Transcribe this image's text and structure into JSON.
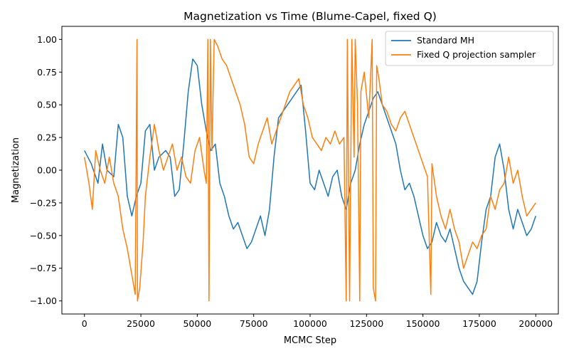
{
  "chart_data": {
    "type": "line",
    "title": "Magnetization vs Time (Blume-Capel, fixed Q)",
    "xlabel": "MCMC Step",
    "ylabel": "Magnetization",
    "xlim": [
      -10000,
      210000
    ],
    "ylim": [
      -1.1,
      1.1
    ],
    "xticks": [
      0,
      25000,
      50000,
      75000,
      100000,
      125000,
      150000,
      175000,
      200000
    ],
    "xtick_labels": [
      "0",
      "25000",
      "50000",
      "75000",
      "100000",
      "125000",
      "150000",
      "175000",
      "200000"
    ],
    "yticks": [
      -1.0,
      -0.75,
      -0.5,
      -0.25,
      0.0,
      0.25,
      0.5,
      0.75,
      1.0
    ],
    "ytick_labels": [
      "−1.00",
      "−0.75",
      "−0.50",
      "−0.25",
      "0.00",
      "0.25",
      "0.50",
      "0.75",
      "1.00"
    ],
    "grid": false,
    "legend_position": "top-right",
    "series": [
      {
        "name": "Standard MH",
        "color": "#1f77b4",
        "points": [
          [
            0,
            0.15
          ],
          [
            3000,
            0.05
          ],
          [
            6000,
            -0.1
          ],
          [
            8000,
            0.2
          ],
          [
            10000,
            0.0
          ],
          [
            13000,
            -0.05
          ],
          [
            15000,
            0.35
          ],
          [
            17000,
            0.25
          ],
          [
            19000,
            -0.2
          ],
          [
            21000,
            -0.35
          ],
          [
            23000,
            -0.2
          ],
          [
            25000,
            -0.1
          ],
          [
            27000,
            0.3
          ],
          [
            29000,
            0.35
          ],
          [
            31000,
            0.0
          ],
          [
            33000,
            0.1
          ],
          [
            36000,
            0.15
          ],
          [
            38000,
            0.1
          ],
          [
            40000,
            -0.2
          ],
          [
            42000,
            -0.15
          ],
          [
            44000,
            0.2
          ],
          [
            46000,
            0.6
          ],
          [
            48000,
            0.85
          ],
          [
            50000,
            0.8
          ],
          [
            52000,
            0.5
          ],
          [
            54000,
            0.3
          ],
          [
            56000,
            0.15
          ],
          [
            58000,
            0.2
          ],
          [
            60000,
            -0.1
          ],
          [
            62000,
            -0.2
          ],
          [
            64000,
            -0.35
          ],
          [
            66000,
            -0.45
          ],
          [
            68000,
            -0.4
          ],
          [
            70000,
            -0.5
          ],
          [
            72000,
            -0.6
          ],
          [
            74000,
            -0.55
          ],
          [
            76000,
            -0.45
          ],
          [
            78000,
            -0.35
          ],
          [
            80000,
            -0.5
          ],
          [
            82000,
            -0.3
          ],
          [
            84000,
            0.1
          ],
          [
            86000,
            0.4
          ],
          [
            88000,
            0.45
          ],
          [
            90000,
            0.5
          ],
          [
            92000,
            0.55
          ],
          [
            94000,
            0.6
          ],
          [
            96000,
            0.65
          ],
          [
            98000,
            0.3
          ],
          [
            100000,
            -0.1
          ],
          [
            102000,
            -0.15
          ],
          [
            104000,
            0.0
          ],
          [
            106000,
            -0.1
          ],
          [
            108000,
            -0.2
          ],
          [
            110000,
            -0.05
          ],
          [
            112000,
            0.0
          ],
          [
            114000,
            -0.2
          ],
          [
            116000,
            -0.3
          ],
          [
            118000,
            -0.1
          ],
          [
            120000,
            0.0
          ],
          [
            122000,
            0.2
          ],
          [
            124000,
            0.35
          ],
          [
            126000,
            0.45
          ],
          [
            128000,
            0.55
          ],
          [
            130000,
            0.6
          ],
          [
            132000,
            0.5
          ],
          [
            134000,
            0.4
          ],
          [
            136000,
            0.3
          ],
          [
            138000,
            0.2
          ],
          [
            140000,
            0.0
          ],
          [
            142000,
            -0.15
          ],
          [
            144000,
            -0.1
          ],
          [
            146000,
            -0.2
          ],
          [
            148000,
            -0.35
          ],
          [
            150000,
            -0.5
          ],
          [
            152000,
            -0.6
          ],
          [
            154000,
            -0.55
          ],
          [
            156000,
            -0.4
          ],
          [
            158000,
            -0.5
          ],
          [
            160000,
            -0.55
          ],
          [
            162000,
            -0.45
          ],
          [
            164000,
            -0.6
          ],
          [
            166000,
            -0.75
          ],
          [
            168000,
            -0.85
          ],
          [
            170000,
            -0.9
          ],
          [
            172000,
            -0.95
          ],
          [
            174000,
            -0.85
          ],
          [
            176000,
            -0.55
          ],
          [
            178000,
            -0.3
          ],
          [
            180000,
            -0.2
          ],
          [
            182000,
            0.1
          ],
          [
            184000,
            0.2
          ],
          [
            186000,
            0.0
          ],
          [
            188000,
            -0.3
          ],
          [
            190000,
            -0.45
          ],
          [
            192000,
            -0.3
          ],
          [
            194000,
            -0.4
          ],
          [
            196000,
            -0.5
          ],
          [
            198000,
            -0.45
          ],
          [
            200000,
            -0.35
          ]
        ]
      },
      {
        "name": "Fixed Q projection sampler",
        "color": "#ff7f0e",
        "points": [
          [
            0,
            0.1
          ],
          [
            2000,
            -0.1
          ],
          [
            3500,
            -0.3
          ],
          [
            5000,
            0.15
          ],
          [
            7000,
            0.0
          ],
          [
            9000,
            -0.1
          ],
          [
            11000,
            0.1
          ],
          [
            13000,
            -0.1
          ],
          [
            15000,
            -0.2
          ],
          [
            17000,
            -0.45
          ],
          [
            19000,
            -0.6
          ],
          [
            21000,
            -0.8
          ],
          [
            22500,
            -0.95
          ],
          [
            23300,
            1.0
          ],
          [
            23500,
            -1.0
          ],
          [
            24500,
            -0.9
          ],
          [
            26000,
            -0.55
          ],
          [
            27000,
            -0.2
          ],
          [
            29000,
            0.1
          ],
          [
            31000,
            0.35
          ],
          [
            33000,
            0.15
          ],
          [
            35000,
            0.0
          ],
          [
            37000,
            0.1
          ],
          [
            39000,
            0.2
          ],
          [
            41000,
            0.0
          ],
          [
            43000,
            0.1
          ],
          [
            45000,
            -0.05
          ],
          [
            47000,
            -0.1
          ],
          [
            49000,
            0.15
          ],
          [
            51000,
            0.25
          ],
          [
            53000,
            0.0
          ],
          [
            54000,
            -0.1
          ],
          [
            54700,
            1.0
          ],
          [
            55200,
            -1.0
          ],
          [
            55800,
            1.0
          ],
          [
            56500,
            0.15
          ],
          [
            57500,
            1.0
          ],
          [
            59000,
            0.95
          ],
          [
            61000,
            0.85
          ],
          [
            63000,
            0.8
          ],
          [
            65000,
            0.7
          ],
          [
            67000,
            0.6
          ],
          [
            69000,
            0.5
          ],
          [
            71000,
            0.35
          ],
          [
            73000,
            0.1
          ],
          [
            75000,
            0.05
          ],
          [
            77000,
            0.2
          ],
          [
            79000,
            0.3
          ],
          [
            81000,
            0.4
          ],
          [
            83000,
            0.2
          ],
          [
            85000,
            0.3
          ],
          [
            87000,
            0.4
          ],
          [
            89000,
            0.5
          ],
          [
            91000,
            0.6
          ],
          [
            93000,
            0.65
          ],
          [
            95000,
            0.7
          ],
          [
            97000,
            0.5
          ],
          [
            99000,
            0.4
          ],
          [
            101000,
            0.25
          ],
          [
            103000,
            0.2
          ],
          [
            105000,
            0.15
          ],
          [
            107000,
            0.25
          ],
          [
            109000,
            0.2
          ],
          [
            111000,
            0.3
          ],
          [
            113000,
            0.2
          ],
          [
            115000,
            0.25
          ],
          [
            116000,
            -1.0
          ],
          [
            116500,
            1.0
          ],
          [
            117500,
            -1.0
          ],
          [
            118500,
            1.0
          ],
          [
            119500,
            0.1
          ],
          [
            120000,
            1.0
          ],
          [
            121000,
            0.5
          ],
          [
            122000,
            -1.0
          ],
          [
            122500,
            0.6
          ],
          [
            124000,
            0.75
          ],
          [
            126000,
            0.4
          ],
          [
            127500,
            1.0
          ],
          [
            128000,
            -0.9
          ],
          [
            129000,
            -1.0
          ],
          [
            129500,
            0.8
          ],
          [
            130500,
            0.7
          ],
          [
            132000,
            0.5
          ],
          [
            134000,
            0.45
          ],
          [
            136000,
            0.35
          ],
          [
            138000,
            0.3
          ],
          [
            140000,
            0.4
          ],
          [
            142000,
            0.45
          ],
          [
            144000,
            0.35
          ],
          [
            146000,
            0.25
          ],
          [
            148000,
            0.15
          ],
          [
            150000,
            0.05
          ],
          [
            152000,
            -0.05
          ],
          [
            153500,
            -0.95
          ],
          [
            154000,
            0.05
          ],
          [
            156000,
            -0.2
          ],
          [
            158000,
            -0.35
          ],
          [
            160000,
            -0.45
          ],
          [
            162000,
            -0.3
          ],
          [
            164000,
            -0.45
          ],
          [
            166000,
            -0.55
          ],
          [
            168000,
            -0.75
          ],
          [
            170000,
            -0.65
          ],
          [
            172000,
            -0.55
          ],
          [
            174000,
            -0.6
          ],
          [
            176000,
            -0.5
          ],
          [
            178000,
            -0.45
          ],
          [
            180000,
            -0.2
          ],
          [
            182000,
            -0.3
          ],
          [
            184000,
            -0.15
          ],
          [
            186000,
            -0.1
          ],
          [
            188000,
            0.1
          ],
          [
            190000,
            -0.1
          ],
          [
            192000,
            0.0
          ],
          [
            194000,
            -0.2
          ],
          [
            196000,
            -0.35
          ],
          [
            198000,
            -0.3
          ],
          [
            200000,
            -0.25
          ]
        ]
      }
    ]
  }
}
